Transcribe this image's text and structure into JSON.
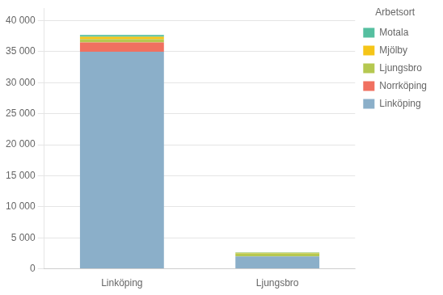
{
  "chart_data": {
    "type": "bar",
    "stacked": true,
    "categories": [
      "Linköping",
      "Ljungsbro"
    ],
    "series": [
      {
        "name": "Linköping",
        "color": "#8bafc9",
        "values": [
          35000,
          2000
        ]
      },
      {
        "name": "Norrköping",
        "color": "#f07060",
        "values": [
          1500,
          0
        ]
      },
      {
        "name": "Ljungsbro",
        "color": "#b5c850",
        "values": [
          500,
          500
        ]
      },
      {
        "name": "Mjölby",
        "color": "#f5c518",
        "values": [
          400,
          100
        ]
      },
      {
        "name": "Motala",
        "color": "#55bfa0",
        "values": [
          300,
          50
        ]
      }
    ],
    "legend_title": "Arbetsort",
    "legend": "upper right",
    "ylim": [
      0,
      42000
    ],
    "yticks": [
      0,
      {
        "value": 5000,
        "label": "5 000"
      },
      {
        "value": 10000,
        "label": "10 000"
      },
      {
        "value": 15000,
        "label": "15 000"
      },
      {
        "value": 20000,
        "label": "20 000"
      },
      {
        "value": 25000,
        "label": "25 000"
      },
      {
        "value": 30000,
        "label": "30 000"
      },
      {
        "value": 35000,
        "label": "35 000"
      },
      {
        "value": 40000,
        "label": "40 000"
      }
    ],
    "grid": true
  }
}
